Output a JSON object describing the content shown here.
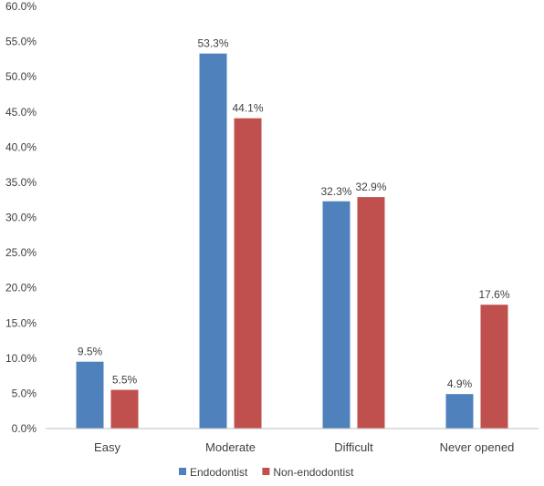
{
  "chart_data": {
    "type": "bar",
    "title": "",
    "xlabel": "",
    "ylabel": "",
    "categories": [
      "Easy",
      "Moderate",
      "Difficult",
      "Never opened"
    ],
    "series": [
      {
        "name": "Endodontist",
        "values": [
          9.5,
          53.3,
          32.3,
          4.9
        ],
        "color": "#4f81bd",
        "labels": [
          "9.5%",
          "53.3%",
          "32.3%",
          "4.9%"
        ]
      },
      {
        "name": "Non-endodontist",
        "values": [
          5.5,
          44.1,
          32.9,
          17.6
        ],
        "color": "#c0504d",
        "labels": [
          "5.5%",
          "44.1%",
          "32.9%",
          "17.6%"
        ]
      }
    ],
    "ylim": [
      0,
      60
    ],
    "yticks": [
      0,
      5,
      10,
      15,
      20,
      25,
      30,
      35,
      40,
      45,
      50,
      55,
      60
    ],
    "ytick_labels": [
      "0.0%",
      "5.0%",
      "10.0%",
      "15.0%",
      "20.0%",
      "25.0%",
      "30.0%",
      "35.0%",
      "40.0%",
      "45.0%",
      "50.0%",
      "55.0%",
      "60.0%"
    ],
    "grid": false,
    "legend_position": "bottom",
    "axis_color": "#bfbfbf"
  }
}
